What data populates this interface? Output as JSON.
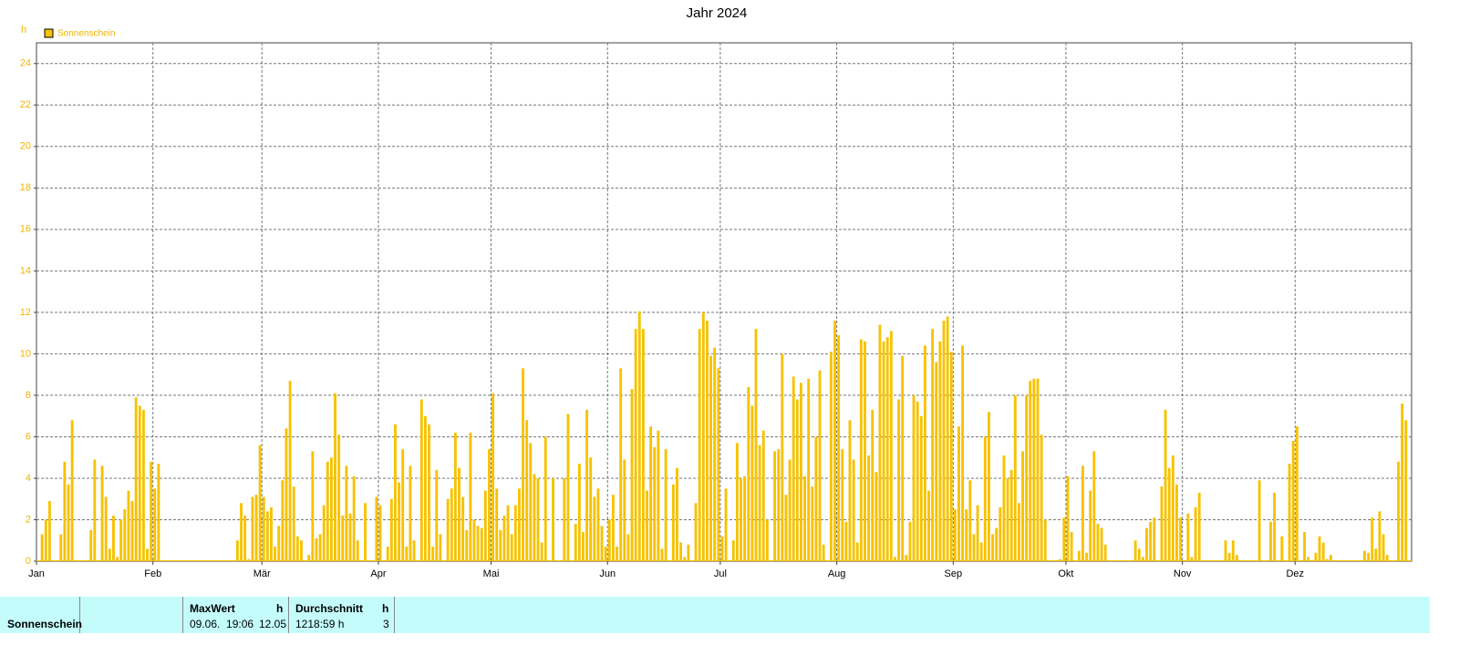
{
  "chart_data": {
    "type": "bar",
    "title": "Jahr 2024",
    "y_unit": "h",
    "categories": [
      "Jan",
      null,
      null,
      null,
      null,
      null,
      null,
      null,
      null,
      null,
      null,
      null,
      null,
      null,
      null,
      null,
      null,
      null,
      null,
      null,
      null,
      null,
      null,
      null,
      null,
      null,
      null,
      null,
      null,
      null,
      null,
      "Feb",
      null,
      null,
      null,
      null,
      null,
      null,
      null,
      null,
      null,
      null,
      null,
      null,
      null,
      null,
      null,
      null,
      null,
      null,
      null,
      null,
      null,
      null,
      null,
      null,
      null,
      null,
      null,
      null,
      "Mär",
      null,
      null,
      null,
      null,
      null,
      null,
      null,
      null,
      null,
      null,
      null,
      null,
      null,
      null,
      null,
      null,
      null,
      null,
      null,
      null,
      null,
      null,
      null,
      null,
      null,
      null,
      null,
      null,
      null,
      null,
      "Apr",
      null,
      null,
      null,
      null,
      null,
      null,
      null,
      null,
      null,
      null,
      null,
      null,
      null,
      null,
      null,
      null,
      null,
      null,
      null,
      null,
      null,
      null,
      null,
      null,
      null,
      null,
      null,
      null,
      null,
      "Mai",
      null,
      null,
      null,
      null,
      null,
      null,
      null,
      null,
      null,
      null,
      null,
      null,
      null,
      null,
      null,
      null,
      null,
      null,
      null,
      null,
      null,
      null,
      null,
      null,
      null,
      null,
      null,
      null,
      null,
      null,
      "Jun",
      null,
      null,
      null,
      null,
      null,
      null,
      null,
      null,
      null,
      null,
      null,
      null,
      null,
      null,
      null,
      null,
      null,
      null,
      null,
      null,
      null,
      null,
      null,
      null,
      null,
      null,
      null,
      null,
      null,
      "Jul",
      null,
      null,
      null,
      null,
      null,
      null,
      null,
      null,
      null,
      null,
      null,
      null,
      null,
      null,
      null,
      null,
      null,
      null,
      null,
      null,
      null,
      null,
      null,
      null,
      null,
      null,
      null,
      null,
      null,
      null,
      "Aug",
      null,
      null,
      null,
      null,
      null,
      null,
      null,
      null,
      null,
      null,
      null,
      null,
      null,
      null,
      null,
      null,
      null,
      null,
      null,
      null,
      null,
      null,
      null,
      null,
      null,
      null,
      null,
      null,
      null,
      null,
      "Sep",
      null,
      null,
      null,
      null,
      null,
      null,
      null,
      null,
      null,
      null,
      null,
      null,
      null,
      null,
      null,
      null,
      null,
      null,
      null,
      null,
      null,
      null,
      null,
      null,
      null,
      null,
      null,
      null,
      null,
      "Okt",
      null,
      null,
      null,
      null,
      null,
      null,
      null,
      null,
      null,
      null,
      null,
      null,
      null,
      null,
      null,
      null,
      null,
      null,
      null,
      null,
      null,
      null,
      null,
      null,
      null,
      null,
      null,
      null,
      null,
      null,
      "Nov",
      null,
      null,
      null,
      null,
      null,
      null,
      null,
      null,
      null,
      null,
      null,
      null,
      null,
      null,
      null,
      null,
      null,
      null,
      null,
      null,
      null,
      null,
      null,
      null,
      null,
      null,
      null,
      null,
      null,
      "Dez",
      null,
      null,
      null,
      null,
      null,
      null,
      null,
      null,
      null,
      null,
      null,
      null,
      null,
      null,
      null,
      null,
      null,
      null,
      null,
      null,
      null,
      null,
      null,
      null,
      null,
      null,
      null,
      null,
      null,
      null
    ],
    "series": [
      {
        "name": "Sonnenschein",
        "color": "#f7c200",
        "values": [
          0,
          1.3,
          2.0,
          2.9,
          0,
          0,
          1.3,
          4.8,
          3.7,
          6.8,
          0,
          0,
          0,
          0,
          1.5,
          4.9,
          0,
          4.6,
          3.1,
          0.6,
          2.2,
          0.2,
          2.0,
          2.5,
          3.4,
          2.9,
          7.9,
          7.5,
          7.3,
          0.6,
          4.8,
          3.5,
          4.7,
          0,
          0,
          0,
          0,
          0,
          0,
          0,
          0,
          0,
          0,
          0,
          0,
          0,
          0,
          0,
          0,
          0,
          0,
          0,
          0,
          1.0,
          2.8,
          2.2,
          0.1,
          3.1,
          3.2,
          5.6,
          3.1,
          2.4,
          2.6,
          0.7,
          1.7,
          3.9,
          6.4,
          8.7,
          3.6,
          1.2,
          1.0,
          0,
          0.3,
          5.3,
          1.1,
          1.3,
          2.7,
          4.8,
          5.0,
          8.1,
          6.1,
          2.2,
          4.6,
          2.3,
          4.1,
          1.0,
          0,
          2.8,
          0,
          0,
          3.1,
          2.7,
          0,
          0.7,
          3.0,
          6.6,
          3.8,
          5.4,
          0.7,
          4.6,
          1.0,
          0,
          7.8,
          7.0,
          6.6,
          0.7,
          4.4,
          1.3,
          0,
          3.0,
          3.5,
          6.2,
          4.5,
          3.1,
          1.5,
          6.2,
          2.0,
          1.7,
          1.6,
          3.4,
          5.4,
          8.1,
          3.5,
          1.5,
          2.2,
          2.7,
          1.3,
          2.7,
          3.5,
          9.3,
          6.8,
          5.7,
          4.2,
          4.0,
          0.9,
          6.0,
          0,
          4.0,
          0,
          0,
          4.0,
          7.1,
          0,
          1.8,
          4.7,
          1.4,
          7.3,
          5.0,
          3.1,
          3.5,
          1.7,
          0.7,
          2.0,
          3.2,
          0.7,
          9.3,
          4.9,
          1.3,
          8.3,
          11.2,
          12.05,
          11.2,
          3.4,
          6.5,
          5.5,
          6.3,
          0.6,
          5.4,
          0,
          3.7,
          4.5,
          0.9,
          0.2,
          0.8,
          0,
          2.8,
          11.2,
          12.0,
          11.6,
          9.9,
          10.3,
          9.3,
          1.2,
          3.5,
          0,
          1.0,
          5.7,
          4.0,
          4.1,
          8.4,
          7.5,
          11.2,
          5.6,
          6.3,
          2.0,
          0,
          5.3,
          5.4,
          10.0,
          3.2,
          4.9,
          8.9,
          7.8,
          8.6,
          4.1,
          8.8,
          3.6,
          6.0,
          9.2,
          0.8,
          0,
          10.1,
          11.6,
          10.9,
          5.4,
          1.9,
          6.8,
          4.9,
          0.9,
          10.7,
          10.6,
          5.1,
          7.3,
          4.3,
          11.4,
          10.6,
          10.8,
          11.1,
          0.2,
          7.8,
          9.9,
          0.3,
          1.9,
          8.0,
          7.7,
          7.0,
          10.4,
          3.4,
          11.2,
          9.6,
          10.6,
          11.6,
          11.8,
          10.1,
          2.5,
          6.5,
          10.4,
          2.5,
          3.9,
          1.3,
          2.7,
          0.9,
          6.0,
          7.2,
          1.3,
          1.6,
          2.6,
          5.1,
          4.0,
          4.4,
          8.0,
          2.8,
          5.3,
          8.0,
          8.7,
          8.8,
          8.8,
          6.1,
          2.0,
          0,
          0,
          0,
          0.1,
          2.1,
          4.1,
          1.4,
          0,
          0.5,
          4.6,
          0.4,
          3.4,
          5.3,
          1.8,
          1.6,
          0.8,
          0,
          0,
          0,
          0,
          0,
          0,
          0,
          1.0,
          0.6,
          0.2,
          1.6,
          1.9,
          2.1,
          0,
          3.6,
          7.3,
          4.5,
          5.1,
          3.7,
          2.1,
          0,
          2.3,
          0.2,
          2.6,
          3.3,
          0,
          0,
          0,
          0,
          0,
          0,
          1.0,
          0.4,
          1.0,
          0.3,
          0,
          0,
          0,
          0,
          0,
          3.9,
          0,
          0,
          1.9,
          3.3,
          0,
          1.2,
          0,
          4.7,
          5.8,
          6.5,
          0,
          1.4,
          0.2,
          0,
          0.4,
          1.2,
          0.9,
          0.1,
          0.3,
          0,
          0,
          0,
          0,
          0,
          0,
          0,
          0,
          0.5,
          0.4,
          2.1,
          0.6,
          2.4,
          1.3,
          0.3,
          0,
          0,
          4.8,
          7.6,
          6.8,
          0
        ]
      }
    ],
    "ylim": [
      0,
      25
    ],
    "yticks": [
      0,
      2,
      4,
      6,
      8,
      10,
      12,
      14,
      16,
      18,
      20,
      22,
      24
    ],
    "grid": true,
    "legend": "top-left"
  },
  "footer": {
    "row_label": "Sonnenschein",
    "max": {
      "header": "MaxWert",
      "unit": "h",
      "time": "09.06.  19:06",
      "value": 12.05
    },
    "avg": {
      "header": "Durchschnitt",
      "unit": "h",
      "total": "1218:59 h",
      "value": 3
    }
  }
}
